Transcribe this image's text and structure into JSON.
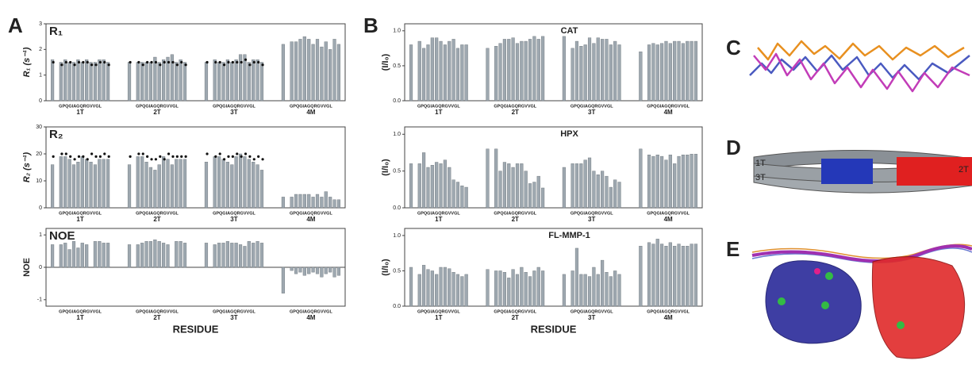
{
  "panel_labels": [
    "A",
    "B",
    "C",
    "D",
    "E"
  ],
  "diagram_labels": [
    "1T",
    "3T",
    "2T"
  ],
  "chart_data": [
    {
      "type": "bar",
      "title": "R₁",
      "ylabel": "R₁ (s⁻¹)",
      "ylim": [
        0,
        3
      ],
      "yticks": [
        0,
        1,
        2,
        3
      ],
      "groups": [
        "1T",
        "2T",
        "3T",
        "4M"
      ],
      "group_labels": [
        "GPQGIAGQRGVVGL",
        "GPQGIAGQRGVVGL",
        "GPQGIAGQRGVVGL",
        "GPQGIAGQRGVVGL"
      ],
      "series": [
        {
          "marker": "bar",
          "color": "#9ea8b0",
          "values": [
            1.6,
            null,
            1.5,
            1.6,
            1.5,
            1.5,
            1.6,
            1.5,
            1.6,
            1.5,
            1.5,
            1.6,
            1.6,
            1.5,
            1.5,
            null,
            1.5,
            1.5,
            1.5,
            1.5,
            1.7,
            1.5,
            1.6,
            1.7,
            1.8,
            1.5,
            1.6,
            1.5,
            1.5,
            null,
            1.6,
            1.5,
            1.5,
            1.6,
            1.5,
            1.6,
            1.8,
            1.8,
            1.5,
            1.6,
            1.6,
            1.5,
            2.2,
            null,
            2.3,
            2.3,
            2.4,
            2.5,
            2.4,
            2.2,
            2.4,
            2.1,
            2.3,
            2.0,
            2.4,
            2.2
          ]
        },
        {
          "marker": "dot",
          "color": "#111111",
          "values": [
            1.5,
            null,
            1.4,
            1.5,
            1.5,
            1.4,
            1.5,
            1.5,
            1.5,
            1.4,
            1.4,
            1.5,
            1.5,
            1.4,
            1.5,
            null,
            1.5,
            1.4,
            1.5,
            1.5,
            1.5,
            1.4,
            1.5,
            1.5,
            1.5,
            1.4,
            1.5,
            1.4,
            1.5,
            null,
            1.5,
            1.5,
            1.4,
            1.5,
            1.5,
            1.5,
            1.5,
            1.6,
            1.4,
            1.5,
            1.5,
            1.4,
            null,
            null,
            null,
            null,
            null,
            null,
            null,
            null,
            null,
            null,
            null,
            null,
            null,
            null
          ]
        }
      ]
    },
    {
      "type": "bar",
      "title": "R₂",
      "ylabel": "R₂ (s⁻¹)",
      "ylim": [
        0,
        30
      ],
      "yticks": [
        0,
        10,
        20,
        30
      ],
      "groups": [
        "1T",
        "2T",
        "3T",
        "4M"
      ],
      "group_labels": [
        "GPQGIAGQRGVVGL",
        "GPQGIAGQRGVVGL",
        "GPQGIAGQRGVVGL",
        "GPQGIAGQRGVVGL"
      ],
      "series": [
        {
          "marker": "bar",
          "color": "#9ea8b0",
          "values": [
            16,
            null,
            19,
            19,
            18,
            16,
            17,
            19,
            18,
            17,
            16,
            18,
            18,
            18,
            16,
            null,
            19,
            19,
            17,
            15,
            14,
            16,
            19,
            18,
            16,
            18,
            18,
            18,
            17,
            null,
            19,
            19,
            18,
            17,
            16,
            19,
            20,
            19,
            18,
            17,
            16,
            14,
            4,
            null,
            4,
            5,
            5,
            5,
            5,
            4,
            5,
            4,
            6,
            4,
            3,
            3
          ]
        },
        {
          "marker": "dot",
          "color": "#111111",
          "values": [
            19,
            null,
            20,
            20,
            19,
            18,
            19,
            19,
            18,
            20,
            19,
            19,
            20,
            19,
            19,
            null,
            20,
            20,
            19,
            18,
            18,
            19,
            18,
            20,
            19,
            19,
            19,
            19,
            20,
            null,
            19,
            20,
            18,
            19,
            19,
            20,
            19,
            20,
            19,
            18,
            19,
            18,
            null,
            null,
            null,
            null,
            null,
            null,
            null,
            null,
            null,
            null,
            null,
            null,
            null,
            null
          ]
        }
      ]
    },
    {
      "type": "bar",
      "title": "NOE",
      "ylabel": "NOE",
      "xlabel": "RESIDUE",
      "ylim": [
        -1.2,
        1.2
      ],
      "yticks": [
        -1,
        0,
        1
      ],
      "groups": [
        "1T",
        "2T",
        "3T",
        "4M"
      ],
      "group_labels": [
        "GPQGIAGQRGVVGL",
        "GPQGIAGQRGVVGL",
        "GPQGIAGQRGVVGL",
        "GPQGIAGQRGVVGL"
      ],
      "series": [
        {
          "marker": "bar",
          "color": "#9ea8b0",
          "values": [
            0.7,
            null,
            0.7,
            0.75,
            0.55,
            0.8,
            0.6,
            0.75,
            0.7,
            null,
            0.8,
            0.8,
            0.75,
            0.75,
            0.7,
            null,
            0.7,
            0.75,
            0.8,
            0.8,
            0.85,
            0.8,
            0.75,
            0.7,
            null,
            0.8,
            0.8,
            0.75,
            0.75,
            null,
            0.7,
            0.75,
            0.75,
            0.8,
            0.75,
            0.75,
            0.7,
            0.65,
            0.8,
            0.75,
            0.8,
            0.75,
            -0.8,
            null,
            -0.1,
            -0.2,
            -0.15,
            -0.25,
            -0.2,
            -0.15,
            -0.2,
            -0.3,
            -0.2,
            -0.15,
            -0.3,
            -0.25
          ]
        }
      ]
    },
    {
      "type": "bar",
      "title": "CAT",
      "ylabel": "(I/I₀)",
      "ylim": [
        0,
        1.1
      ],
      "yticks": [
        {
          "value": 0,
          "label": "0.0"
        },
        0.5,
        {
          "value": 1,
          "label": "1.0"
        }
      ],
      "groups": [
        "1T",
        "2T",
        "3T",
        "4M"
      ],
      "group_labels": [
        "GPQGIAGQRGVVGL",
        "GPQGIAGQRGVVGL",
        "GPQGIAGQRGVVGL",
        "GPQGIAGQRGVVGL"
      ],
      "series": [
        {
          "marker": "bar",
          "color": "#9ea8b0",
          "values": [
            0.8,
            null,
            0.85,
            0.75,
            0.8,
            0.9,
            0.9,
            0.85,
            0.8,
            0.85,
            0.88,
            0.75,
            0.8,
            0.8,
            0.75,
            null,
            0.78,
            0.82,
            0.88,
            0.88,
            0.9,
            0.82,
            0.85,
            0.85,
            0.88,
            0.92,
            0.88,
            0.92,
            0.92,
            null,
            0.75,
            0.85,
            0.78,
            0.8,
            0.9,
            0.82,
            0.9,
            0.88,
            0.88,
            0.8,
            0.85,
            0.8,
            0.7,
            null,
            0.8,
            0.82,
            0.8,
            0.82,
            0.85,
            0.82,
            0.85,
            0.85,
            0.82,
            0.85,
            0.85,
            0.85
          ]
        }
      ]
    },
    {
      "type": "bar",
      "title": "HPX",
      "ylabel": "(I/I₀)",
      "ylim": [
        0,
        1.1
      ],
      "yticks": [
        {
          "value": 0,
          "label": "0.0"
        },
        0.5,
        {
          "value": 1,
          "label": "1.0"
        }
      ],
      "groups": [
        "1T",
        "2T",
        "3T",
        "4M"
      ],
      "group_labels": [
        "GPQGIAGQRGVVGL",
        "GPQGIAGQRGVVGL",
        "GPQGIAGQRGVVGL",
        "GPQGIAGQRGVVGL"
      ],
      "series": [
        {
          "marker": "bar",
          "color": "#9ea8b0",
          "values": [
            0.6,
            null,
            0.6,
            0.75,
            0.55,
            0.58,
            0.62,
            0.6,
            0.65,
            0.55,
            0.38,
            0.35,
            0.3,
            0.28,
            0.8,
            null,
            0.8,
            0.5,
            0.62,
            0.6,
            0.55,
            0.6,
            0.6,
            0.5,
            0.33,
            0.35,
            0.43,
            0.27,
            0.55,
            null,
            0.6,
            0.6,
            0.6,
            0.65,
            0.68,
            0.5,
            0.45,
            0.5,
            0.43,
            0.28,
            0.38,
            0.35,
            0.8,
            null,
            0.72,
            0.7,
            0.72,
            0.7,
            0.65,
            0.72,
            0.6,
            0.7,
            0.72,
            0.72,
            0.73,
            0.73
          ]
        }
      ]
    },
    {
      "type": "bar",
      "title": "FL-MMP-1",
      "ylabel": "(I/I₀)",
      "xlabel": "RESIDUE",
      "ylim": [
        0,
        1.1
      ],
      "yticks": [
        {
          "value": 0,
          "label": "0.0"
        },
        0.5,
        {
          "value": 1,
          "label": "1.0"
        }
      ],
      "groups": [
        "1T",
        "2T",
        "3T",
        "4M"
      ],
      "group_labels": [
        "GPQGIAGQRGVVGL",
        "GPQGIAGQRGVVGL",
        "GPQGIAGQRGVVGL",
        "GPQGIAGQRGVVGL"
      ],
      "series": [
        {
          "marker": "bar",
          "color": "#9ea8b0",
          "values": [
            0.55,
            null,
            0.45,
            0.58,
            0.52,
            0.5,
            0.45,
            0.55,
            0.55,
            0.53,
            0.48,
            0.45,
            0.42,
            0.45,
            0.52,
            null,
            0.5,
            0.5,
            0.48,
            0.4,
            0.52,
            0.45,
            0.55,
            0.48,
            0.42,
            0.5,
            0.55,
            0.5,
            0.45,
            null,
            0.5,
            0.82,
            0.45,
            0.45,
            0.42,
            0.55,
            0.45,
            0.65,
            0.48,
            0.42,
            0.5,
            0.45,
            0.85,
            null,
            0.9,
            0.88,
            0.95,
            0.88,
            0.85,
            0.9,
            0.85,
            0.88,
            0.85,
            0.85,
            0.88,
            0.88
          ]
        }
      ]
    }
  ]
}
